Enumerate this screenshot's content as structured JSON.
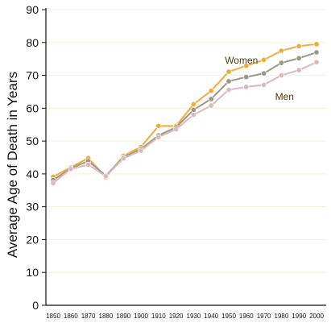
{
  "chart_data": {
    "type": "line",
    "xlabel": "",
    "ylabel": "Average Age of Death in Years",
    "ylim": [
      0,
      90
    ],
    "yticks": [
      0,
      10,
      20,
      30,
      40,
      50,
      60,
      70,
      80,
      90
    ],
    "categories": [
      "1850",
      "1860",
      "1870",
      "1880",
      "1890",
      "1900",
      "1910",
      "1920",
      "1930",
      "1940",
      "1950",
      "1960",
      "1970",
      "1980",
      "1990",
      "2000"
    ],
    "grid": true,
    "series": [
      {
        "name": "Women",
        "color": "#f0ad3a",
        "values": [
          39.1,
          42.0,
          44.8,
          39.0,
          45.5,
          48.2,
          54.6,
          54.6,
          61.2,
          65.3,
          71.1,
          72.9,
          74.7,
          77.5,
          78.9,
          79.5
        ],
        "label_position": "upper-right"
      },
      {
        "name": "",
        "color": "#9a9a84",
        "values": [
          38.1,
          41.7,
          43.9,
          39.5,
          45.0,
          47.6,
          51.7,
          54.2,
          59.5,
          62.8,
          68.2,
          69.5,
          70.6,
          73.8,
          75.2,
          77.0
        ]
      },
      {
        "name": "Men",
        "color": "#ddb8bc",
        "values": [
          37.2,
          41.5,
          42.8,
          39.3,
          44.7,
          47.1,
          51.2,
          53.6,
          58.0,
          60.8,
          65.6,
          66.5,
          67.1,
          70.0,
          71.6,
          74.0
        ],
        "label_position": "right"
      }
    ],
    "colors": {
      "axis": "#111111",
      "grid": "#f3f3d8"
    }
  }
}
